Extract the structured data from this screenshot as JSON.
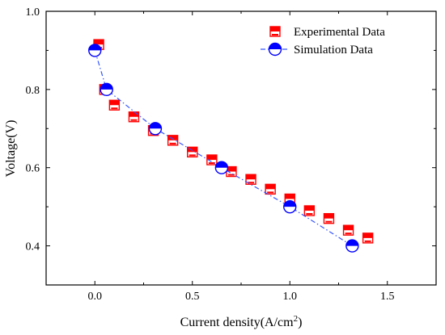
{
  "chart_data": {
    "type": "scatter",
    "xlabel": "Current density(A/cm",
    "xlabel_sup": "2",
    "xlabel_end": ")",
    "ylabel": "Voltage(V)",
    "xlim": [
      -0.25,
      1.75
    ],
    "ylim": [
      0.3,
      1.0
    ],
    "xticks": [
      0.0,
      0.5,
      1.0,
      1.5
    ],
    "xtick_labels": [
      "0.0",
      "0.5",
      "1.0",
      "1.5"
    ],
    "yticks": [
      0.4,
      0.6,
      0.8,
      1.0
    ],
    "ytick_labels": [
      "0.4",
      "0.6",
      "0.8",
      "1.0"
    ],
    "grid": false,
    "legend_position": "top-right",
    "series": [
      {
        "name": "Experimental Data",
        "marker": "square-half-filled",
        "color": "#ff0000",
        "line": false,
        "x": [
          0.02,
          0.05,
          0.1,
          0.2,
          0.3,
          0.4,
          0.5,
          0.6,
          0.7,
          0.8,
          0.9,
          1.0,
          1.1,
          1.2,
          1.3,
          1.4
        ],
        "y": [
          0.915,
          0.8,
          0.76,
          0.73,
          0.695,
          0.67,
          0.64,
          0.62,
          0.59,
          0.57,
          0.545,
          0.52,
          0.49,
          0.47,
          0.44,
          0.42
        ]
      },
      {
        "name": "Simulation    Data",
        "marker": "circle-half-filled",
        "color": "#0000ff",
        "line": true,
        "line_style": "dash-dot",
        "x": [
          0.0,
          0.06,
          0.31,
          0.65,
          1.0,
          1.32
        ],
        "y": [
          0.9,
          0.8,
          0.7,
          0.6,
          0.5,
          0.4
        ]
      }
    ]
  }
}
